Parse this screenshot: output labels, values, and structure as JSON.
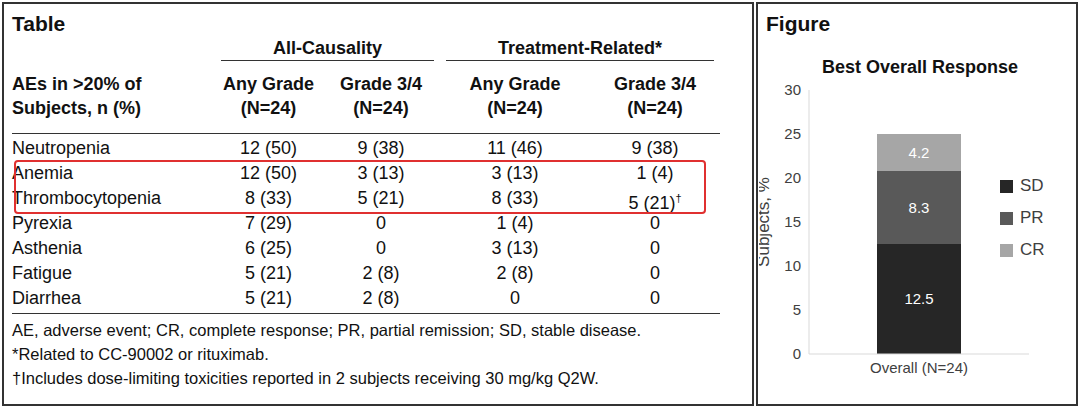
{
  "table": {
    "title": "Table",
    "group_headers": [
      "All-Causality",
      "Treatment-Related*"
    ],
    "column_headers": [
      [
        "AEs in >20% of",
        "Subjects, n (%)"
      ],
      [
        "Any Grade",
        "(N=24)"
      ],
      [
        "Grade 3/4",
        "(N=24)"
      ],
      [
        "Any Grade",
        "(N=24)"
      ],
      [
        "Grade 3/4",
        "(N=24)"
      ]
    ],
    "rows": [
      [
        "Neutropenia",
        "12 (50)",
        "9 (38)",
        "11 (46)",
        "9 (38)"
      ],
      [
        "Anemia",
        "12 (50)",
        "3 (13)",
        "3 (13)",
        "1 (4)"
      ],
      [
        "Thrombocytopenia",
        "8 (33)",
        "5 (21)",
        "8 (33)",
        "5 (21)†"
      ],
      [
        "Pyrexia",
        "7 (29)",
        "0",
        "1 (4)",
        "0"
      ],
      [
        "Asthenia",
        "6 (25)",
        "0",
        "3 (13)",
        "0"
      ],
      [
        "Fatigue",
        "5 (21)",
        "2 (8)",
        "2 (8)",
        "0"
      ],
      [
        "Diarrhea",
        "5 (21)",
        "2 (8)",
        "0",
        "0"
      ]
    ],
    "footnotes": [
      "AE, adverse event; CR, complete response; PR, partial remission; SD, stable disease.",
      "*Related to CC-90002 or rituximab.",
      "†Includes dose-limiting toxicities reported in 2 subjects receiving 30 mg/kg Q2W."
    ]
  },
  "figure": {
    "title": "Figure"
  },
  "chart_data": {
    "type": "bar",
    "title": "Best Overall Response",
    "ylabel": "Subjects, %",
    "categories": [
      "Overall (N=24)"
    ],
    "series": [
      {
        "name": "SD",
        "color": "#262626",
        "values": [
          12.5
        ]
      },
      {
        "name": "PR",
        "color": "#595959",
        "values": [
          8.3
        ]
      },
      {
        "name": "CR",
        "color": "#a6a6a6",
        "values": [
          4.2
        ]
      }
    ],
    "ylim": [
      0,
      30
    ],
    "yticks": [
      0,
      5,
      10,
      15,
      20,
      25,
      30
    ],
    "stacked": true,
    "data_labels": true,
    "legend": "right",
    "grid": false
  }
}
